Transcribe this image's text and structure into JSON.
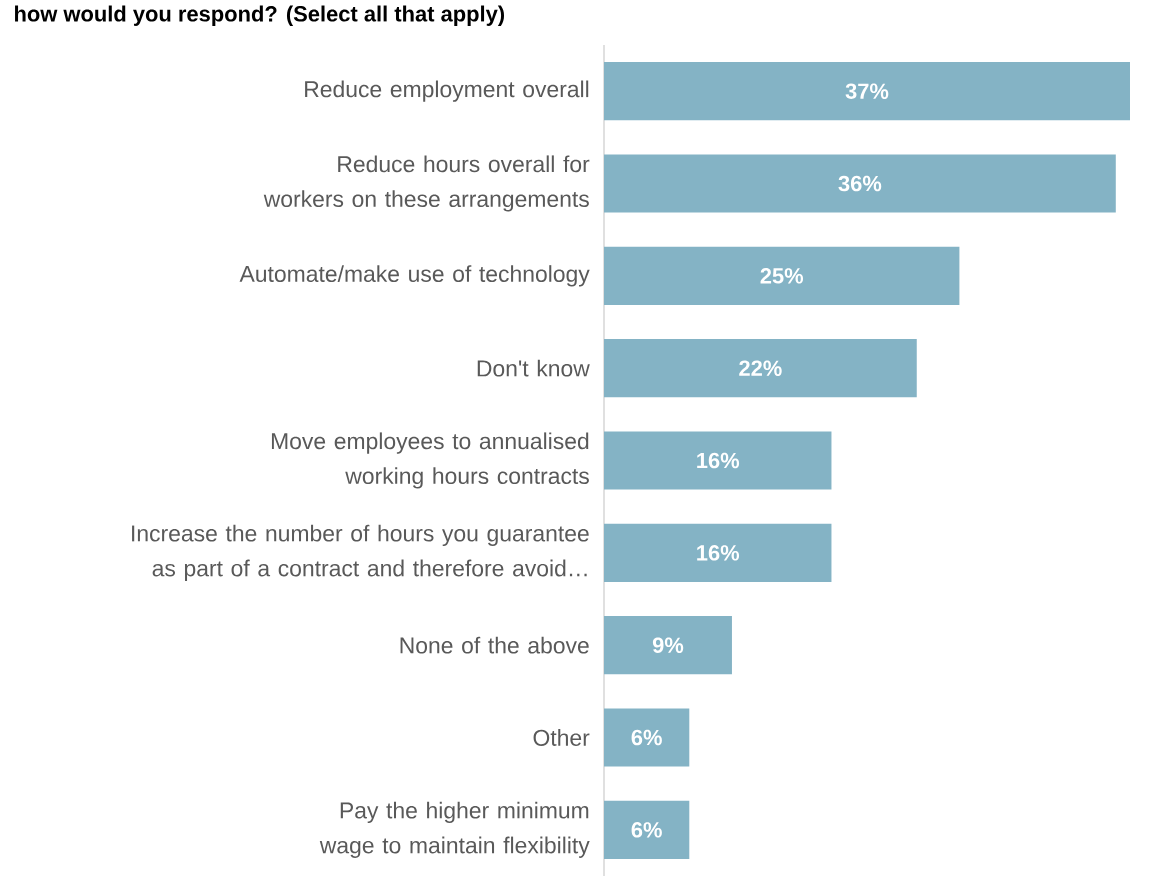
{
  "chart_data": {
    "type": "bar",
    "orientation": "horizontal",
    "title": "how would you respond? (Select all that apply)",
    "categories": [
      "Reduce employment overall",
      "Reduce hours overall for workers on these arrangements",
      "Automate/make use of technology",
      "Don't know",
      "Move employees to annualised working hours contracts",
      "Increase the number of hours you guarantee as part of a contract and therefore avoid…",
      "None of the above",
      "Other",
      "Pay the higher minimum wage to maintain flexibility"
    ],
    "values": [
      37,
      36,
      25,
      22,
      16,
      16,
      9,
      6,
      6
    ],
    "value_labels": [
      "37%",
      "36%",
      "25%",
      "22%",
      "16%",
      "16%",
      "9%",
      "6%",
      "6%"
    ],
    "color": "#84b3c5",
    "data_labels": true
  }
}
